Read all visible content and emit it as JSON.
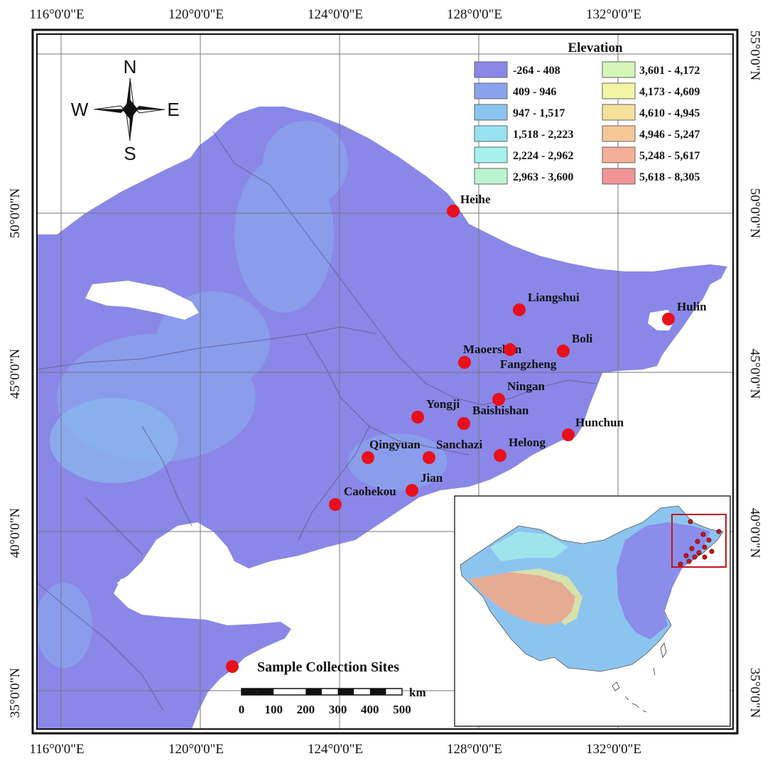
{
  "coords": {
    "top_labels": [
      "116°0'0\"E",
      "120°0'0\"E",
      "124°0'0\"E",
      "128°0'0\"E",
      "132°0'0\"E"
    ],
    "bottom_labels": [
      "116°0'0\"E",
      "120°0'0\"E",
      "124°0'0\"E",
      "128°0'0\"E",
      "132°0'0\"E"
    ],
    "left_labels": [
      "50°0'0\"N",
      "45°0'0\"N",
      "40°0'0\"N",
      "35°0'0\"N"
    ],
    "right_labels": [
      "55°0'0\"N",
      "50°0'0\"N",
      "45°0'0\"N",
      "40°0'0\"N",
      "35°0'0\"N"
    ]
  },
  "compass": {
    "n": "N",
    "s": "S",
    "e": "E",
    "w": "W"
  },
  "legend": {
    "title": "Elevation",
    "items": [
      {
        "label": "-264 - 408",
        "color": "#8a87e8"
      },
      {
        "label": "409 - 946",
        "color": "#8aa2ee"
      },
      {
        "label": "947 - 1,517",
        "color": "#8cc4f0"
      },
      {
        "label": "1,518 - 2,223",
        "color": "#96e2f0"
      },
      {
        "label": "2,224 - 2,962",
        "color": "#a6f2ea"
      },
      {
        "label": "2,963 - 3,600",
        "color": "#bcf4d2"
      },
      {
        "label": "3,601 - 4,172",
        "color": "#d6f6b8"
      },
      {
        "label": "4,173 - 4,609",
        "color": "#f2f5a2"
      },
      {
        "label": "4,610 - 4,945",
        "color": "#f6e09a"
      },
      {
        "label": "4,946 - 5,247",
        "color": "#f6c898"
      },
      {
        "label": "5,248 - 5,617",
        "color": "#f6ae96"
      },
      {
        "label": "5,618 - 8,305",
        "color": "#f29494"
      }
    ]
  },
  "sites": [
    {
      "name": "Heihe"
    },
    {
      "name": "Liangshui"
    },
    {
      "name": "Hulin"
    },
    {
      "name": "Boli"
    },
    {
      "name": "Maoershan"
    },
    {
      "name": "Fangzheng"
    },
    {
      "name": "Ningan"
    },
    {
      "name": "Yongji"
    },
    {
      "name": "Baishishan"
    },
    {
      "name": "Hunchun"
    },
    {
      "name": "Qingyuan"
    },
    {
      "name": "Sanchazi"
    },
    {
      "name": "Helong"
    },
    {
      "name": "Jian"
    },
    {
      "name": "Caohekou"
    }
  ],
  "sample_legend": "Sample Collection Sites",
  "scalebar": {
    "unit": "km",
    "ticks": [
      "0",
      "100",
      "200",
      "300",
      "400",
      "500"
    ]
  },
  "colors": {
    "site_marker": "#e8101c",
    "inset_box": "#c4161c",
    "low_land": "#8a87e8"
  }
}
